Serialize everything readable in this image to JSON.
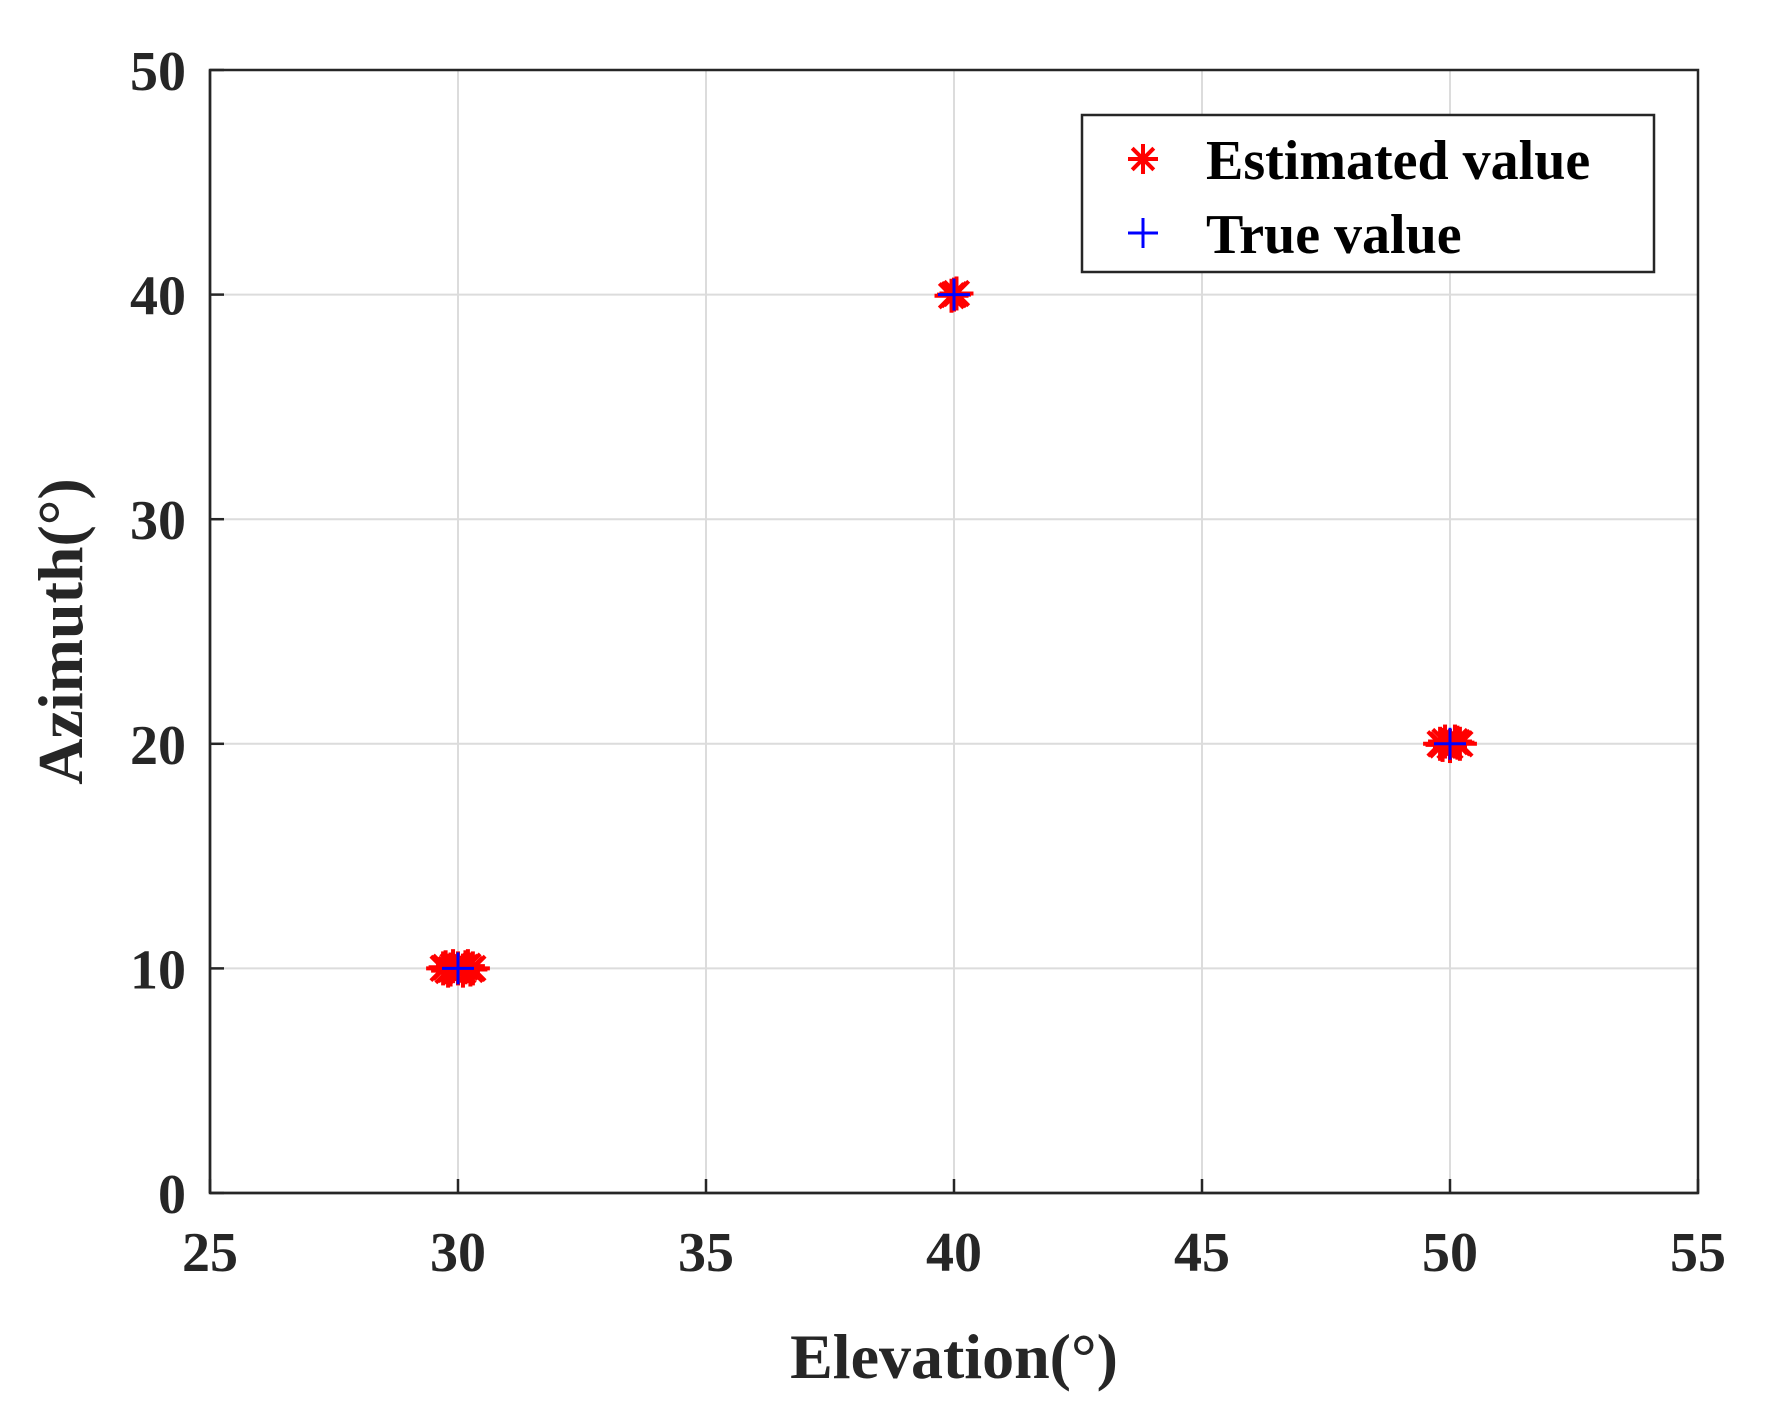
{
  "chart_data": {
    "type": "scatter",
    "title": "",
    "xlabel": "Elevation(°)",
    "ylabel": "Azimuth(°)",
    "xlim": [
      25,
      55
    ],
    "ylim": [
      0,
      50
    ],
    "xticks": [
      25,
      30,
      35,
      40,
      45,
      50,
      55
    ],
    "yticks": [
      0,
      10,
      20,
      30,
      40,
      50
    ],
    "xtick_labels": [
      "25",
      "30",
      "35",
      "40",
      "45",
      "50",
      "55"
    ],
    "ytick_labels": [
      "0",
      "10",
      "20",
      "30",
      "40",
      "50"
    ],
    "grid": true,
    "legend_position": "top-right",
    "series": [
      {
        "name": "Estimated value",
        "marker": "asterisk",
        "color": "#ff0000",
        "x": [
          29.7,
          29.8,
          29.9,
          30.0,
          30.1,
          30.2,
          30.3,
          29.75,
          30.25,
          29.85,
          30.15,
          40.0,
          39.95,
          40.05,
          49.8,
          49.9,
          50.0,
          50.1,
          50.2,
          49.85,
          50.15
        ],
        "y": [
          10.0,
          9.9,
          10.1,
          10.0,
          9.9,
          10.1,
          10.0,
          10.05,
          9.95,
          9.95,
          10.05,
          40.0,
          39.95,
          40.05,
          20.0,
          20.1,
          19.9,
          20.1,
          20.0,
          19.95,
          20.05
        ]
      },
      {
        "name": "True value",
        "marker": "plus",
        "color": "#0000ff",
        "x": [
          30,
          40,
          50
        ],
        "y": [
          10,
          40,
          20
        ]
      }
    ]
  }
}
